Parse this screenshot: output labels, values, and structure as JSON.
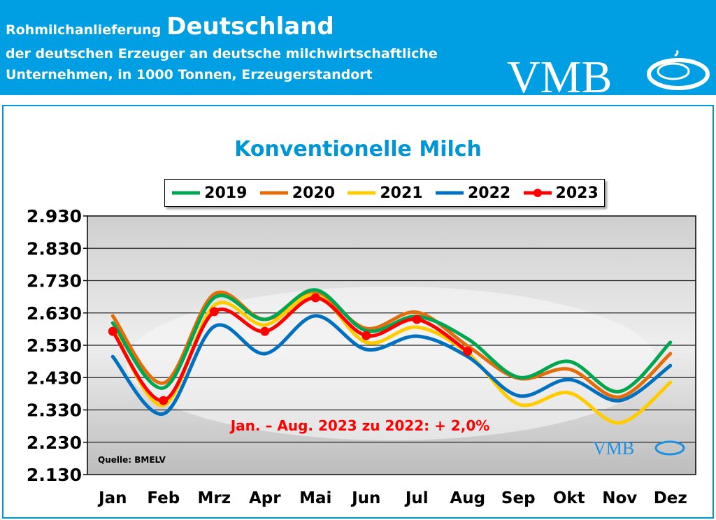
{
  "header": {
    "title_small": "Rohmilchanlieferung",
    "title_big": "Deutschland",
    "line2": "der deutschen Erzeuger an deutsche milchwirtschaftliche",
    "line3": "Unternehmen, in 1000 Tonnen, Erzeugerstandort",
    "logo_text": "VMB"
  },
  "colors": {
    "header_bg": "#009fe3",
    "title": "#0096d6",
    "annotation": "#ff0000"
  },
  "chart_data": {
    "type": "line",
    "title": "Konventionelle Milch",
    "categories": [
      "Jan",
      "Feb",
      "Mrz",
      "Apr",
      "Mai",
      "Jun",
      "Jul",
      "Aug",
      "Sep",
      "Okt",
      "Nov",
      "Dez"
    ],
    "yticks": [
      "2.930",
      "2.830",
      "2.730",
      "2.630",
      "2.530",
      "2.430",
      "2.330",
      "2.230",
      "2.130"
    ],
    "ylim": [
      2130,
      2930
    ],
    "grid": true,
    "legend_placement": "top",
    "series": [
      {
        "name": "2019",
        "color": "#00a650",
        "markers": false,
        "values": [
          2599,
          2398,
          2677,
          2610,
          2701,
          2575,
          2619,
          2550,
          2431,
          2480,
          2387,
          2539
        ]
      },
      {
        "name": "2020",
        "color": "#e46c0a",
        "markers": false,
        "values": [
          2621,
          2413,
          2688,
          2610,
          2690,
          2582,
          2632,
          2528,
          2428,
          2456,
          2370,
          2504
        ]
      },
      {
        "name": "2021",
        "color": "#ffcc00",
        "markers": false,
        "values": [
          2582,
          2344,
          2653,
          2593,
          2686,
          2539,
          2586,
          2506,
          2348,
          2383,
          2290,
          2415
        ]
      },
      {
        "name": "2022",
        "color": "#0070c0",
        "markers": false,
        "values": [
          2495,
          2318,
          2588,
          2504,
          2621,
          2517,
          2558,
          2495,
          2374,
          2424,
          2359,
          2467
        ]
      },
      {
        "name": "2023",
        "color": "#ff0000",
        "markers": true,
        "values": [
          2573,
          2359,
          2634,
          2573,
          2677,
          2560,
          2610,
          2511,
          null,
          null,
          null,
          null
        ]
      }
    ],
    "annotation": "Jan. – Aug. 2023 zu 2022: + 2,0%",
    "source": "Quelle: BMELV",
    "watermark_logo_text": "VMB"
  }
}
